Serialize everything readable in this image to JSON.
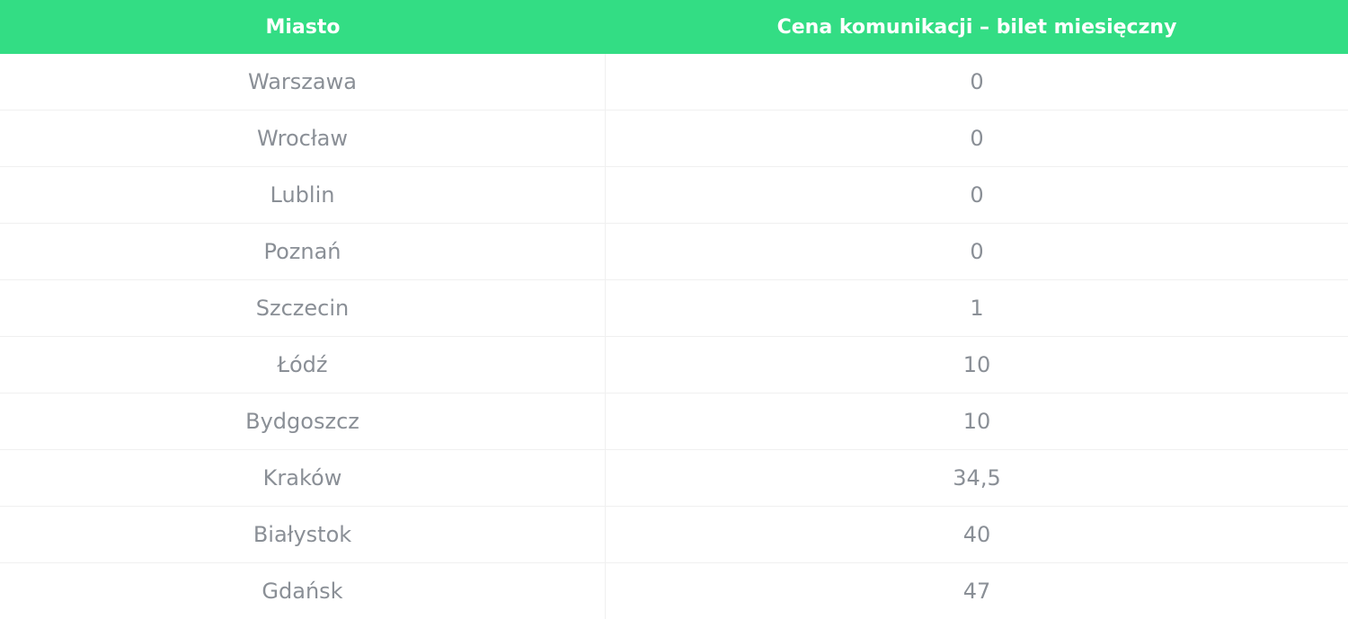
{
  "table": {
    "headers": [
      "Miasto",
      "Cena komunikacji – bilet miesięczny"
    ],
    "rows": [
      {
        "city": "Warszawa",
        "price": "0"
      },
      {
        "city": "Wrocław",
        "price": "0"
      },
      {
        "city": "Lublin",
        "price": "0"
      },
      {
        "city": "Poznań",
        "price": "0"
      },
      {
        "city": "Szczecin",
        "price": "1"
      },
      {
        "city": "Łódź",
        "price": "10"
      },
      {
        "city": "Bydgoszcz",
        "price": "10"
      },
      {
        "city": "Kraków",
        "price": "34,5"
      },
      {
        "city": "Białystok",
        "price": "40"
      },
      {
        "city": "Gdańsk",
        "price": "47"
      }
    ]
  },
  "colors": {
    "header_bg": "#33dd84",
    "header_text": "#ffffff",
    "cell_text": "#8a8f96"
  }
}
